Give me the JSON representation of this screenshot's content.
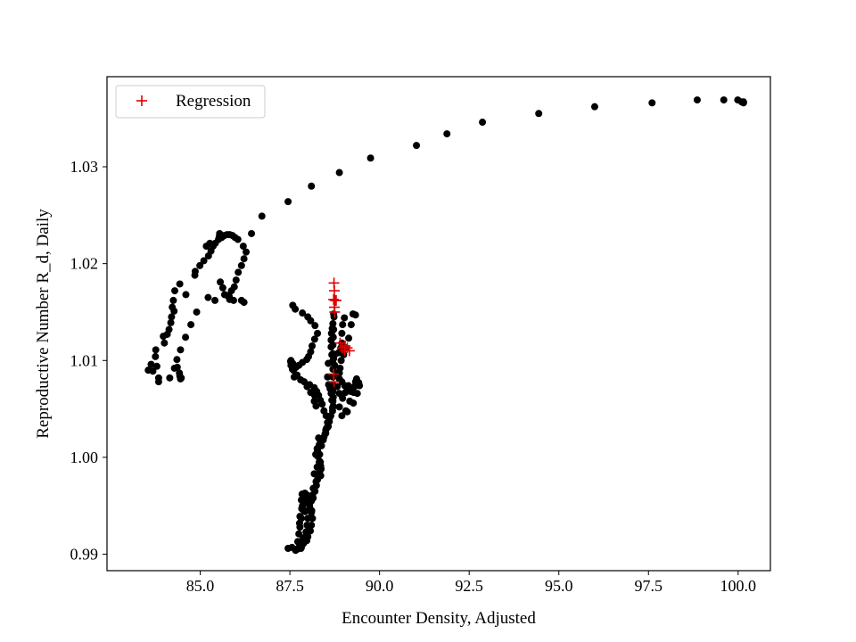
{
  "chart_data": {
    "type": "scatter",
    "title": "",
    "xlabel": "Encounter Density, Adjusted",
    "ylabel": "Reproductive Number R_d, Daily",
    "xlim": [
      82.4,
      100.9
    ],
    "ylim": [
      0.9883,
      1.0393
    ],
    "xticks": [
      85.0,
      87.5,
      90.0,
      92.5,
      95.0,
      97.5,
      100.0
    ],
    "xtick_labels": [
      "85.0",
      "87.5",
      "90.0",
      "92.5",
      "95.0",
      "97.5",
      "100.0"
    ],
    "yticks": [
      0.99,
      1.0,
      1.01,
      1.02,
      1.03
    ],
    "ytick_labels": [
      "0.99",
      "1.00",
      "1.01",
      "1.02",
      "1.03"
    ],
    "grid": false,
    "legend": {
      "placement": "top-left",
      "entries": [
        {
          "label": "Regression",
          "marker": "+",
          "color": "#e00000"
        }
      ]
    },
    "series": [
      {
        "name": "",
        "marker": "circle",
        "color": "#000000",
        "points": [
          [
            100.15,
            1.0367
          ],
          [
            100.15,
            1.0366
          ],
          [
            100.1,
            1.0367
          ],
          [
            99.99,
            1.0369
          ],
          [
            99.6,
            1.0369
          ],
          [
            98.86,
            1.0369
          ],
          [
            97.6,
            1.0366
          ],
          [
            96.0,
            1.0362
          ],
          [
            94.44,
            1.0355
          ],
          [
            92.87,
            1.0346
          ],
          [
            91.88,
            1.0334
          ],
          [
            91.03,
            1.0322
          ],
          [
            89.75,
            1.0309
          ],
          [
            88.88,
            1.0294
          ],
          [
            88.1,
            1.028
          ],
          [
            87.45,
            1.0264
          ],
          [
            86.72,
            1.0249
          ],
          [
            86.43,
            1.0231
          ],
          [
            86.2,
            1.0218
          ],
          [
            86.28,
            1.0212
          ],
          [
            86.22,
            1.0205
          ],
          [
            86.15,
            1.0198
          ],
          [
            86.06,
            1.0191
          ],
          [
            86.0,
            1.0183
          ],
          [
            85.95,
            1.0176
          ],
          [
            85.87,
            1.0172
          ],
          [
            85.81,
            1.0166
          ],
          [
            85.68,
            1.0168
          ],
          [
            85.63,
            1.0175
          ],
          [
            85.56,
            1.0181
          ],
          [
            85.76,
            1.0167
          ],
          [
            85.82,
            1.0163
          ],
          [
            85.93,
            1.0162
          ],
          [
            86.15,
            1.0162
          ],
          [
            86.22,
            1.016
          ],
          [
            85.41,
            1.0162
          ],
          [
            85.22,
            1.0165
          ],
          [
            84.9,
            1.015
          ],
          [
            84.74,
            1.0137
          ],
          [
            84.59,
            1.0124
          ],
          [
            84.45,
            1.0111
          ],
          [
            84.35,
            1.0101
          ],
          [
            84.28,
            1.0092
          ],
          [
            84.15,
            1.0082
          ],
          [
            84.45,
            1.0081
          ],
          [
            84.42,
            1.0087
          ],
          [
            84.36,
            1.0093
          ],
          [
            83.84,
            1.0078
          ],
          [
            83.68,
            1.0089
          ],
          [
            83.79,
            1.0094
          ],
          [
            83.75,
            1.0104
          ],
          [
            83.76,
            1.0111
          ],
          [
            83.97,
            1.0125
          ],
          [
            84.13,
            1.0132
          ],
          [
            84.2,
            1.0145
          ],
          [
            84.27,
            1.0151
          ],
          [
            84.25,
            1.0162
          ],
          [
            84.29,
            1.0172
          ],
          [
            84.43,
            1.0179
          ],
          [
            84.6,
            1.0168
          ],
          [
            84.0,
            1.0118
          ],
          [
            84.08,
            1.0127
          ],
          [
            84.18,
            1.0139
          ],
          [
            84.22,
            1.0155
          ],
          [
            84.85,
            1.0188
          ],
          [
            84.86,
            1.0192
          ],
          [
            84.99,
            1.0198
          ],
          [
            85.1,
            1.0203
          ],
          [
            85.23,
            1.0208
          ],
          [
            85.3,
            1.0213
          ],
          [
            85.36,
            1.0218
          ],
          [
            85.42,
            1.0221
          ],
          [
            85.51,
            1.0225
          ],
          [
            85.6,
            1.0227
          ],
          [
            85.67,
            1.0229
          ],
          [
            85.75,
            1.023
          ],
          [
            85.82,
            1.023
          ],
          [
            85.9,
            1.0229
          ],
          [
            85.97,
            1.0227
          ],
          [
            86.05,
            1.0225
          ],
          [
            85.17,
            1.0218
          ],
          [
            85.27,
            1.0221
          ],
          [
            85.54,
            1.0231
          ],
          [
            85.53,
            1.0228
          ],
          [
            83.55,
            1.009
          ],
          [
            83.63,
            1.0096
          ],
          [
            83.84,
            1.0082
          ],
          [
            84.43,
            1.0084
          ],
          [
            84.47,
            1.0082
          ],
          [
            87.58,
            1.0157
          ],
          [
            87.65,
            1.0153
          ],
          [
            87.85,
            1.0149
          ],
          [
            88.0,
            1.0145
          ],
          [
            88.08,
            1.0141
          ],
          [
            88.2,
            1.0136
          ],
          [
            88.27,
            1.0128
          ],
          [
            88.19,
            1.0122
          ],
          [
            88.12,
            1.0115
          ],
          [
            88.08,
            1.0109
          ],
          [
            88.02,
            1.0104
          ],
          [
            87.97,
            1.0101
          ],
          [
            87.85,
            1.0098
          ],
          [
            87.75,
            1.0095
          ],
          [
            87.67,
            1.0093
          ],
          [
            87.58,
            1.0097
          ],
          [
            87.52,
            1.0099
          ],
          [
            87.53,
            1.01
          ],
          [
            87.6,
            1.009
          ],
          [
            87.7,
            1.0085
          ],
          [
            87.8,
            1.008
          ],
          [
            87.9,
            1.0078
          ],
          [
            88.05,
            1.0075
          ],
          [
            88.18,
            1.0072
          ],
          [
            88.25,
            1.0068
          ],
          [
            88.3,
            1.0064
          ],
          [
            88.35,
            1.0059
          ],
          [
            88.4,
            1.0055
          ],
          [
            88.45,
            1.0048
          ],
          [
            88.51,
            1.0043
          ],
          [
            88.55,
            1.0036
          ],
          [
            88.52,
            1.003
          ],
          [
            88.48,
            1.0024
          ],
          [
            88.45,
            1.0021
          ],
          [
            88.4,
            1.0019
          ],
          [
            88.35,
            1.0017
          ],
          [
            88.32,
            1.0013
          ],
          [
            88.27,
            1.0007
          ],
          [
            88.22,
            1.0003
          ],
          [
            88.28,
            1.0001
          ],
          [
            88.35,
            0.9995
          ],
          [
            88.36,
            0.9991
          ],
          [
            88.37,
            0.9988
          ],
          [
            88.36,
            0.9981
          ],
          [
            88.23,
            0.9975
          ],
          [
            88.15,
            0.9968
          ],
          [
            88.13,
            0.9961
          ],
          [
            88.1,
            0.9955
          ],
          [
            88.05,
            0.9948
          ],
          [
            88.11,
            0.9945
          ],
          [
            88.13,
            0.9937
          ],
          [
            88.1,
            0.993
          ],
          [
            88.07,
            0.9924
          ],
          [
            88.0,
            0.9918
          ],
          [
            87.97,
            0.9914
          ],
          [
            87.88,
            0.9911
          ],
          [
            87.82,
            0.9907
          ],
          [
            87.74,
            0.9906
          ],
          [
            87.65,
            0.9905
          ],
          [
            87.56,
            0.9907
          ],
          [
            87.45,
            0.9906
          ],
          [
            87.72,
            0.9913
          ],
          [
            87.87,
            0.9917
          ],
          [
            87.95,
            0.9923
          ],
          [
            87.98,
            0.993
          ],
          [
            88.0,
            0.9937
          ],
          [
            87.92,
            0.9944
          ],
          [
            87.85,
            0.995
          ],
          [
            87.82,
            0.9956
          ],
          [
            87.84,
            0.9962
          ],
          [
            87.88,
            0.9959
          ],
          [
            87.92,
            0.9963
          ],
          [
            88.0,
            0.9955
          ],
          [
            88.05,
            0.995
          ],
          [
            88.1,
            0.9943
          ],
          [
            87.98,
            0.9919
          ],
          [
            87.93,
            0.9915
          ],
          [
            87.86,
            0.9912
          ],
          [
            87.77,
            0.9908
          ],
          [
            87.7,
            0.9905
          ],
          [
            87.81,
            0.9906
          ],
          [
            87.66,
            0.9904
          ],
          [
            87.75,
            0.9921
          ],
          [
            87.78,
            0.9928
          ],
          [
            87.82,
            0.9937
          ],
          [
            87.86,
            0.9946
          ],
          [
            88.18,
            0.9983
          ],
          [
            88.26,
            0.999
          ],
          [
            88.33,
            0.9996
          ],
          [
            88.26,
            1.0009
          ],
          [
            88.3,
            1.002
          ],
          [
            88.5,
            1.0028
          ],
          [
            88.55,
            1.0031
          ],
          [
            88.6,
            1.0037
          ],
          [
            88.64,
            1.0043
          ],
          [
            88.69,
            1.0048
          ],
          [
            88.71,
            1.0053
          ],
          [
            88.7,
            1.0058
          ],
          [
            88.71,
            1.0062
          ],
          [
            88.7,
            1.0068
          ],
          [
            88.72,
            1.0074
          ],
          [
            88.7,
            1.0083
          ],
          [
            88.7,
            1.0091
          ],
          [
            88.69,
            1.0099
          ],
          [
            88.67,
            1.0106
          ],
          [
            88.65,
            1.0114
          ],
          [
            88.65,
            1.0121
          ],
          [
            88.66,
            1.0128
          ],
          [
            88.68,
            1.0133
          ],
          [
            88.7,
            1.0138
          ],
          [
            88.73,
            1.0145
          ],
          [
            88.72,
            1.0148
          ],
          [
            88.72,
            1.0132
          ],
          [
            88.71,
            1.0124
          ],
          [
            88.7,
            1.0116
          ],
          [
            88.7,
            1.0107
          ],
          [
            88.72,
            1.0102
          ],
          [
            88.75,
            1.0095
          ],
          [
            88.83,
            1.0087
          ],
          [
            88.88,
            1.0081
          ],
          [
            88.95,
            1.0078
          ],
          [
            89.03,
            1.0074
          ],
          [
            89.1,
            1.0069
          ],
          [
            89.2,
            1.0068
          ],
          [
            89.28,
            1.0067
          ],
          [
            89.38,
            1.0066
          ],
          [
            89.44,
            1.0074
          ],
          [
            89.42,
            1.0077
          ],
          [
            89.36,
            1.0081
          ],
          [
            89.33,
            1.0078
          ],
          [
            89.3,
            1.0073
          ],
          [
            89.17,
            1.0058
          ],
          [
            89.06,
            1.0048
          ],
          [
            88.95,
            1.0043
          ],
          [
            88.88,
            1.0052
          ],
          [
            88.97,
            1.0061
          ],
          [
            89.05,
            1.0067
          ],
          [
            89.13,
            1.0074
          ],
          [
            88.88,
            1.0087
          ],
          [
            88.9,
            1.0092
          ],
          [
            88.93,
            1.01
          ],
          [
            89.0,
            1.0106
          ],
          [
            89.07,
            1.0113
          ],
          [
            89.14,
            1.0123
          ],
          [
            89.21,
            1.0137
          ],
          [
            89.26,
            1.0148
          ],
          [
            89.33,
            1.0147
          ],
          [
            89.02,
            1.0144
          ],
          [
            88.97,
            1.0137
          ],
          [
            88.95,
            1.0128
          ],
          [
            88.95,
            1.0118
          ],
          [
            88.92,
            1.0113
          ],
          [
            88.86,
            1.0108
          ],
          [
            88.75,
            1.0106
          ],
          [
            88.57,
            1.0097
          ],
          [
            88.55,
            1.0083
          ],
          [
            88.58,
            1.0075
          ],
          [
            88.62,
            1.0071
          ],
          [
            88.65,
            1.0066
          ],
          [
            88.67,
            1.0059
          ],
          [
            88.69,
            1.0051
          ],
          [
            88.61,
            1.0041
          ],
          [
            88.57,
            1.0032
          ],
          [
            88.5,
            1.0025
          ],
          [
            88.43,
            1.0018
          ],
          [
            88.38,
            1.0012
          ],
          [
            88.33,
            1.0003
          ],
          [
            88.32,
            0.9995
          ],
          [
            88.33,
            0.9985
          ],
          [
            88.27,
            0.9977
          ],
          [
            88.24,
            0.9971
          ],
          [
            88.2,
            0.9965
          ],
          [
            88.15,
            0.9958
          ],
          [
            88.06,
            0.9954
          ],
          [
            87.98,
            0.9961
          ],
          [
            87.93,
            0.9958
          ],
          [
            87.9,
            0.9953
          ],
          [
            87.83,
            0.9947
          ],
          [
            87.78,
            0.9939
          ],
          [
            87.77,
            0.9932
          ],
          [
            88.82,
            1.0073
          ],
          [
            88.88,
            1.0066
          ],
          [
            88.95,
            1.0064
          ],
          [
            89.27,
            1.0056
          ],
          [
            89.1,
            1.0047
          ],
          [
            87.53,
            1.0095
          ],
          [
            87.57,
            1.0091
          ],
          [
            87.62,
            1.0083
          ],
          [
            87.98,
            1.0073
          ],
          [
            88.08,
            1.0067
          ],
          [
            88.19,
            1.0064
          ],
          [
            88.18,
            1.0058
          ],
          [
            88.23,
            1.0053
          ]
        ]
      },
      {
        "name": "Regression",
        "marker": "plus",
        "color": "#e00000",
        "points": [
          [
            88.73,
            1.018
          ],
          [
            88.74,
            1.0172
          ],
          [
            88.72,
            1.0163
          ],
          [
            88.76,
            1.0162
          ],
          [
            88.74,
            1.0155
          ],
          [
            88.75,
            1.015
          ],
          [
            88.79,
            1.0162
          ],
          [
            88.9,
            1.0118
          ],
          [
            88.96,
            1.0113
          ],
          [
            89.04,
            1.0115
          ],
          [
            89.1,
            1.0113
          ],
          [
            89.16,
            1.011
          ],
          [
            89.03,
            1.011
          ],
          [
            88.72,
            1.0086
          ],
          [
            88.73,
            1.0078
          ]
        ]
      }
    ]
  }
}
